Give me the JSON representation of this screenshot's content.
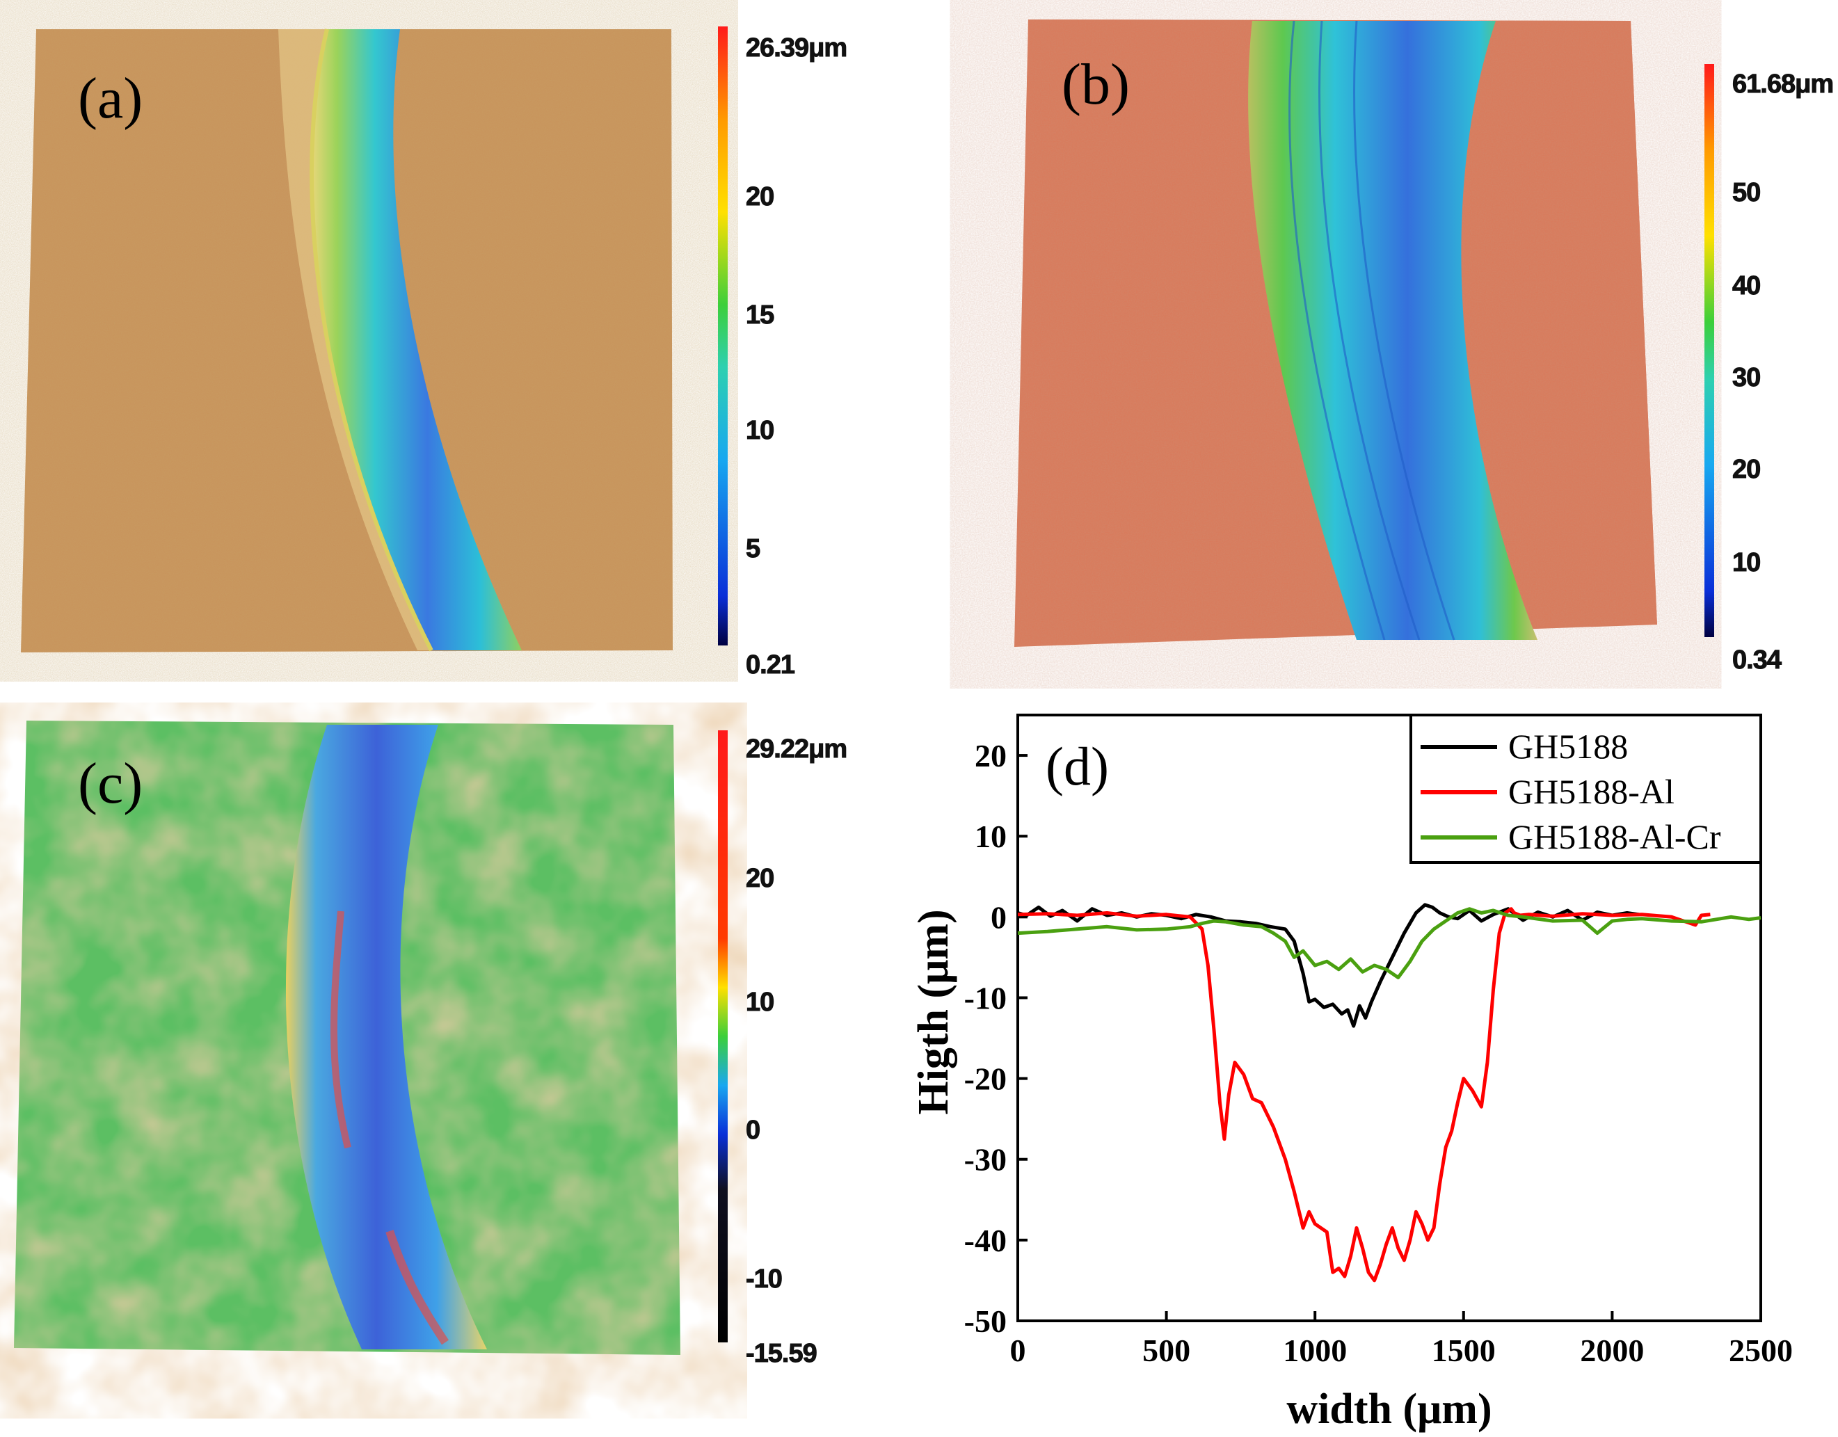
{
  "colors": {
    "track_blue": "#3a7fe0",
    "track_cyan": "#2cc7d6",
    "track_green": "#58c23a",
    "surface_a": "#c9925a",
    "surface_b": "#d9795a",
    "surface_c_green": "#5cbf63",
    "surface_c_orange": "#d29a60",
    "series_black": "#000000",
    "series_red": "#ff0000",
    "series_green": "#4aa010"
  },
  "panels": {
    "a": {
      "label": "(a)",
      "colorbar": {
        "labels": [
          "26.39μm",
          "20",
          "15",
          "10",
          "5",
          "0.21"
        ]
      }
    },
    "b": {
      "label": "(b)",
      "colorbar": {
        "labels": [
          "61.68μm",
          "50",
          "40",
          "30",
          "20",
          "10",
          "0.34"
        ]
      }
    },
    "c": {
      "label": "(c)",
      "colorbar": {
        "labels": [
          "29.22μm",
          "20",
          "10",
          "0",
          "-10",
          "-15.59"
        ]
      }
    },
    "d": {
      "label": "(d)"
    }
  },
  "chart_data": {
    "type": "line",
    "title": "",
    "xlabel": "width (μm)",
    "ylabel": "Higth (μm)",
    "xlim": [
      0,
      2500
    ],
    "ylim": [
      -50,
      25
    ],
    "xticks": [
      0,
      500,
      1000,
      1500,
      2000,
      2500
    ],
    "yticks": [
      20,
      10,
      0,
      -10,
      -20,
      -30,
      -40,
      -50
    ],
    "legend_position": "top-right",
    "series": [
      {
        "name": "GH5188",
        "color": "#000000",
        "x": [
          0,
          30,
          70,
          110,
          150,
          200,
          250,
          300,
          350,
          400,
          450,
          500,
          550,
          600,
          650,
          700,
          750,
          800,
          850,
          900,
          930,
          960,
          980,
          1000,
          1030,
          1060,
          1090,
          1110,
          1130,
          1150,
          1170,
          1190,
          1220,
          1260,
          1300,
          1340,
          1370,
          1395,
          1420,
          1450,
          1480,
          1520,
          1560,
          1600,
          1650,
          1700,
          1750,
          1800,
          1850,
          1900,
          1950,
          2000,
          2050,
          2090
        ],
        "y": [
          0.5,
          0.2,
          1.2,
          0.1,
          0.8,
          -0.5,
          1.0,
          0.2,
          0.5,
          0.0,
          0.4,
          0.2,
          -0.2,
          0.3,
          0.0,
          -0.5,
          -0.6,
          -0.8,
          -1.2,
          -1.5,
          -3.0,
          -7.0,
          -10.5,
          -10.2,
          -11.2,
          -10.8,
          -12.0,
          -11.5,
          -13.5,
          -11.0,
          -12.5,
          -10.5,
          -8.0,
          -5.0,
          -2.0,
          0.5,
          1.5,
          1.2,
          0.5,
          0.0,
          -0.2,
          0.8,
          -0.5,
          0.3,
          1.0,
          -0.4,
          0.6,
          0.0,
          0.8,
          -0.4,
          0.6,
          0.2,
          0.5,
          0.3
        ]
      },
      {
        "name": "GH5188-Al",
        "color": "#ff0000",
        "x": [
          0,
          100,
          200,
          300,
          400,
          500,
          580,
          620,
          640,
          660,
          680,
          695,
          710,
          730,
          760,
          790,
          820,
          860,
          900,
          930,
          960,
          980,
          1000,
          1020,
          1040,
          1060,
          1080,
          1100,
          1120,
          1140,
          1160,
          1180,
          1200,
          1220,
          1240,
          1260,
          1280,
          1300,
          1320,
          1340,
          1360,
          1380,
          1400,
          1420,
          1440,
          1460,
          1480,
          1500,
          1530,
          1560,
          1580,
          1600,
          1620,
          1640,
          1660,
          1670,
          1690,
          1720,
          1800,
          1900,
          2000,
          2100,
          2200,
          2280,
          2300,
          2330
        ],
        "y": [
          0.3,
          0.4,
          0.2,
          0.5,
          0.1,
          0.3,
          0.0,
          -1.5,
          -6.0,
          -14.0,
          -23.0,
          -27.5,
          -22.0,
          -18.0,
          -19.5,
          -22.5,
          -23.0,
          -26.0,
          -30.0,
          -34.0,
          -38.5,
          -36.5,
          -38.0,
          -38.5,
          -39.0,
          -44.0,
          -43.5,
          -44.5,
          -42.0,
          -38.5,
          -41.0,
          -44.0,
          -45.0,
          -43.0,
          -40.5,
          -38.5,
          -41.0,
          -42.5,
          -40.0,
          -36.5,
          -38.0,
          -40.0,
          -38.5,
          -33.0,
          -28.5,
          -26.5,
          -23.0,
          -20.0,
          -21.5,
          -23.5,
          -18.0,
          -9.0,
          -2.0,
          0.5,
          1.0,
          0.5,
          0.2,
          0.3,
          0.1,
          0.4,
          0.2,
          0.3,
          0.0,
          -1.0,
          0.2,
          0.3
        ]
      },
      {
        "name": "GH5188-Al-Cr",
        "color": "#4aa010",
        "x": [
          0,
          100,
          200,
          300,
          400,
          500,
          580,
          620,
          660,
          700,
          760,
          820,
          860,
          900,
          930,
          960,
          1000,
          1040,
          1080,
          1120,
          1160,
          1200,
          1240,
          1280,
          1320,
          1360,
          1400,
          1440,
          1480,
          1520,
          1560,
          1600,
          1650,
          1700,
          1800,
          1900,
          1950,
          2000,
          2050,
          2100,
          2200,
          2300,
          2400,
          2460,
          2500
        ],
        "y": [
          -2.0,
          -1.8,
          -1.5,
          -1.2,
          -1.6,
          -1.5,
          -1.2,
          -0.8,
          -0.5,
          -0.6,
          -1.0,
          -1.2,
          -2.0,
          -3.0,
          -5.0,
          -4.2,
          -6.0,
          -5.5,
          -6.5,
          -5.2,
          -6.8,
          -6.0,
          -6.5,
          -7.5,
          -5.5,
          -3.0,
          -1.5,
          -0.5,
          0.5,
          1.0,
          0.5,
          0.8,
          0.2,
          0.0,
          -0.5,
          -0.4,
          -2.0,
          -0.5,
          -0.3,
          -0.2,
          -0.5,
          -0.6,
          0.0,
          -0.3,
          -0.1
        ]
      }
    ]
  }
}
